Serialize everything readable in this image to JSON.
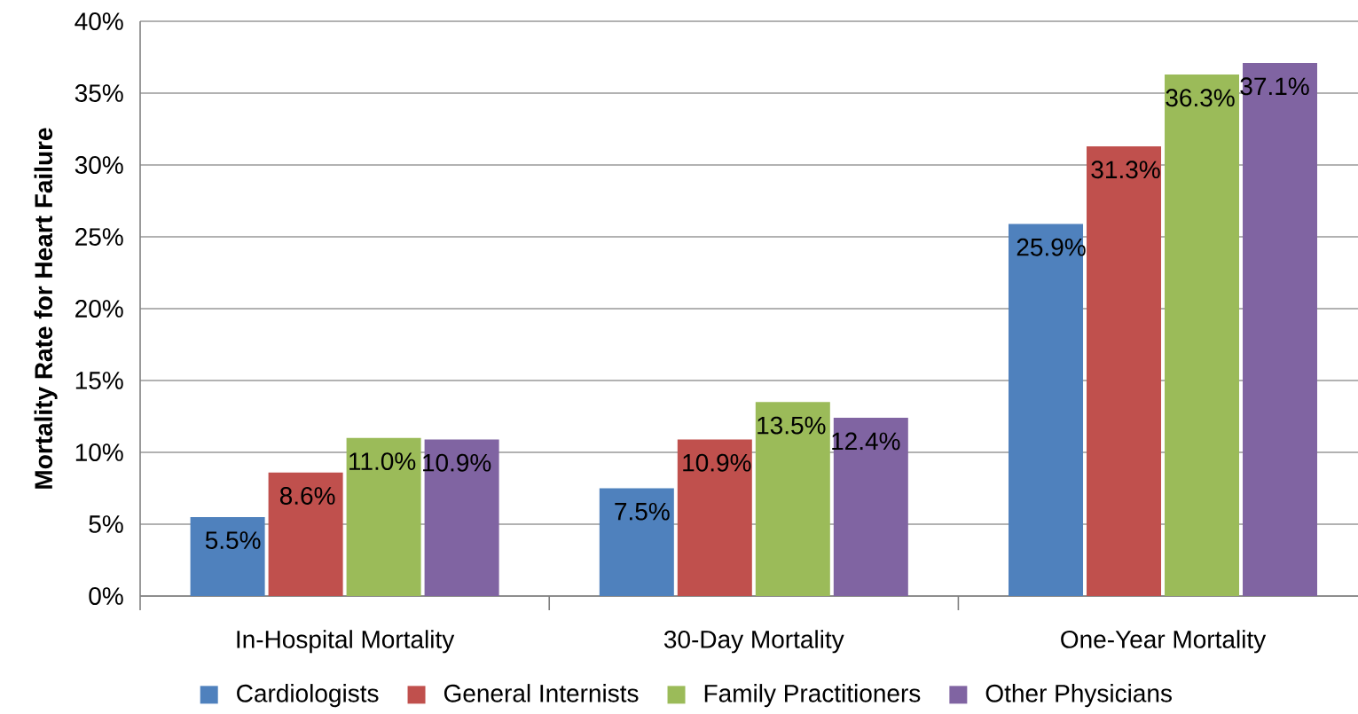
{
  "chart_data": {
    "type": "bar",
    "ylabel": "Mortality Rate for Heart Failure",
    "categories": [
      "In-Hospital Mortality",
      "30-Day Mortality",
      "One-Year Mortality"
    ],
    "series": [
      {
        "name": "Cardiologists",
        "color": "#4f81bd",
        "values": [
          5.5,
          7.5,
          25.9
        ],
        "value_labels": [
          "5.5%",
          "7.5%",
          "25.9%"
        ]
      },
      {
        "name": "General Internists",
        "color": "#c0504d",
        "values": [
          8.6,
          10.9,
          31.3
        ],
        "value_labels": [
          "8.6%",
          "10.9%",
          "31.3%"
        ]
      },
      {
        "name": "Family Practitioners",
        "color": "#9bbb59",
        "values": [
          11.0,
          13.5,
          36.3
        ],
        "value_labels": [
          "11.0%",
          "13.5%",
          "36.3%"
        ]
      },
      {
        "name": "Other Physicians",
        "color": "#8064a2",
        "values": [
          10.9,
          12.4,
          37.1
        ],
        "value_labels": [
          "10.9%",
          "12.4%",
          "37.1%"
        ]
      }
    ],
    "ylim": [
      0,
      40
    ],
    "yticks": [
      {
        "value": 0,
        "label": "0%"
      },
      {
        "value": 5,
        "label": "5%"
      },
      {
        "value": 10,
        "label": "10%"
      },
      {
        "value": 15,
        "label": "15%"
      },
      {
        "value": 20,
        "label": "20%"
      },
      {
        "value": 25,
        "label": "25%"
      },
      {
        "value": 30,
        "label": "30%"
      },
      {
        "value": 35,
        "label": "35%"
      },
      {
        "value": 40,
        "label": "40%"
      }
    ],
    "grid": "y",
    "legend": "bottom"
  }
}
